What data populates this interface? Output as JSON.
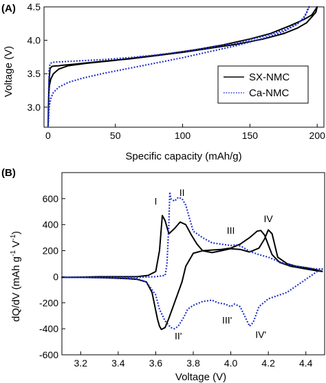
{
  "panels": [
    {
      "panel_label": "(A)",
      "chart_data": {
        "type": "line",
        "xlabel": "Specific capacity (mAh/g)",
        "ylabel": "Voltage (V)",
        "xlim": [
          -3,
          205
        ],
        "ylim": [
          2.7,
          4.5
        ],
        "xticks": [
          0,
          50,
          100,
          150,
          200
        ],
        "yticks": [
          3.0,
          3.5,
          4.0,
          4.5
        ],
        "ytick_labels": [
          "3.0",
          "3.5",
          "4.0",
          "4.5"
        ],
        "grid": false,
        "legend_position": "center-right",
        "series": [
          {
            "name": "SX-NMC",
            "color": "#000000",
            "dash": "solid",
            "x": [
              0,
              0.3,
              0.8,
              1.5,
              3,
              5,
              8,
              12,
              18,
              25,
              40,
              60,
              80,
              100,
              120,
              140,
              160,
              175,
              185,
              192,
              196,
              199,
              200,
              199,
              196,
              190,
              180,
              165,
              150,
              130,
              110,
              90,
              70,
              50,
              30,
              15,
              8,
              4,
              2,
              1,
              0.6,
              0.4,
              0.2,
              0.1,
              0
            ],
            "y": [
              2.71,
              3.0,
              3.4,
              3.58,
              3.61,
              3.615,
              3.62,
              3.63,
              3.64,
              3.655,
              3.685,
              3.72,
              3.77,
              3.82,
              3.88,
              3.94,
              4.02,
              4.1,
              4.18,
              4.26,
              4.35,
              4.42,
              4.5,
              4.47,
              4.38,
              4.31,
              4.22,
              4.1,
              4.02,
              3.93,
              3.86,
              3.8,
              3.75,
              3.7,
              3.66,
              3.62,
              3.57,
              3.5,
              3.42,
              3.32,
              3.2,
              3.05,
              2.9,
              2.8,
              2.71
            ]
          },
          {
            "name": "Ca-NMC",
            "color": "#2233cc",
            "dash": "dotted",
            "x": [
              0,
              0.3,
              0.8,
              1.5,
              3,
              6,
              12,
              20,
              40,
              60,
              80,
              100,
              120,
              140,
              160,
              175,
              185,
              190,
              192,
              193,
              194,
              193,
              190,
              185,
              175,
              160,
              140,
              120,
              100,
              80,
              60,
              40,
              25,
              15,
              8,
              4,
              2,
              1,
              0.6,
              0.4,
              0.2,
              0
            ],
            "y": [
              2.71,
              3.1,
              3.55,
              3.65,
              3.67,
              3.675,
              3.68,
              3.69,
              3.71,
              3.74,
              3.78,
              3.83,
              3.89,
              3.96,
              4.06,
              4.15,
              4.24,
              4.33,
              4.4,
              4.47,
              4.5,
              4.45,
              4.34,
              4.24,
              4.13,
              4.03,
              3.92,
              3.83,
              3.74,
              3.66,
              3.58,
              3.5,
              3.43,
              3.37,
              3.3,
              3.22,
              3.13,
              3.02,
              2.92,
              2.84,
              2.77,
              2.71
            ]
          }
        ]
      }
    },
    {
      "panel_label": "(B)",
      "chart_data": {
        "type": "line",
        "xlabel": "Voltage (V)",
        "ylabel_parts": [
          "dQ/dV  (mAh g",
          "-1",
          " V",
          "-1",
          ")"
        ],
        "xlim": [
          3.1,
          4.5
        ],
        "ylim": [
          -600,
          800
        ],
        "xticks": [
          3.2,
          3.4,
          3.6,
          3.8,
          4.0,
          4.2,
          4.4
        ],
        "xtick_labels": [
          "3.2",
          "3.4",
          "3.6",
          "3.8",
          "4.0",
          "4.2",
          "4.4"
        ],
        "yticks": [
          -600,
          -400,
          -200,
          0,
          200,
          400,
          600
        ],
        "grid": false,
        "annotations": [
          {
            "text": "I",
            "x": 3.6,
            "y": 555
          },
          {
            "text": "II",
            "x": 3.74,
            "y": 620
          },
          {
            "text": "III",
            "x": 4.0,
            "y": 330
          },
          {
            "text": "IV",
            "x": 4.2,
            "y": 420
          },
          {
            "text": "II'",
            "x": 3.72,
            "y": -480
          },
          {
            "text": "III'",
            "x": 3.98,
            "y": -360
          },
          {
            "text": "IV'",
            "x": 4.16,
            "y": -470
          }
        ],
        "series": [
          {
            "name": "SX-NMC",
            "color": "#000000",
            "dash": "solid",
            "x": [
              4.49,
              4.46,
              4.4,
              4.32,
              4.26,
              4.22,
              4.2,
              4.18,
              4.16,
              4.14,
              4.1,
              4.05,
              4.0,
              3.95,
              3.9,
              3.85,
              3.8,
              3.76,
              3.74,
              3.72,
              3.7,
              3.67,
              3.65,
              3.63,
              3.62,
              3.61,
              3.6,
              3.58,
              3.55,
              3.5,
              3.45,
              3.4,
              3.35,
              3.3,
              3.25,
              3.2,
              3.15,
              3.1,
              3.2,
              3.3,
              3.4,
              3.5,
              3.56,
              3.6,
              3.62,
              3.635,
              3.65,
              3.67,
              3.7,
              3.73,
              3.76,
              3.79,
              3.82,
              3.85,
              3.9,
              3.95,
              4.0,
              4.05,
              4.1,
              4.15,
              4.18,
              4.2,
              4.22,
              4.25,
              4.3,
              4.35,
              4.4,
              4.45,
              4.49
            ],
            "y": [
              40,
              45,
              60,
              80,
              110,
              170,
              245,
              320,
              355,
              350,
              300,
              250,
              220,
              210,
              205,
              200,
              180,
              80,
              -40,
              -120,
              -200,
              -320,
              -390,
              -405,
              -380,
              -330,
              -260,
              -120,
              -40,
              -20,
              -15,
              -12,
              -10,
              -8,
              -6,
              -5,
              -5,
              -5,
              -3,
              0,
              0,
              0,
              10,
              40,
              200,
              470,
              430,
              330,
              370,
              420,
              400,
              320,
              250,
              200,
              185,
              200,
              215,
              210,
              190,
              220,
              290,
              360,
              330,
              150,
              100,
              80,
              70,
              55,
              40
            ]
          },
          {
            "name": "Ca-NMC",
            "color": "#2233cc",
            "dash": "dotted",
            "x": [
              4.49,
              4.46,
              4.4,
              4.3,
              4.2,
              4.15,
              4.12,
              4.1,
              4.08,
              4.05,
              4.02,
              4.0,
              3.97,
              3.93,
              3.9,
              3.85,
              3.8,
              3.77,
              3.75,
              3.72,
              3.7,
              3.68,
              3.65,
              3.62,
              3.6,
              3.55,
              3.5,
              3.4,
              3.3,
              3.2,
              3.1,
              3.3,
              3.5,
              3.6,
              3.65,
              3.66,
              3.67,
              3.675,
              3.68,
              3.7,
              3.72,
              3.74,
              3.76,
              3.78,
              3.8,
              3.85,
              3.9,
              3.95,
              4.0,
              4.03,
              4.06,
              4.1,
              4.15,
              4.2,
              4.25,
              4.3,
              4.35,
              4.4,
              4.45,
              4.49
            ],
            "y": [
              60,
              40,
              -20,
              -120,
              -170,
              -230,
              -350,
              -380,
              -320,
              -230,
              -210,
              -230,
              -210,
              -200,
              -180,
              -190,
              -220,
              -250,
              -310,
              -380,
              -400,
              -390,
              -340,
              -250,
              -140,
              -40,
              -15,
              -10,
              -8,
              -5,
              -5,
              -5,
              -5,
              0,
              10,
              100,
              400,
              650,
              600,
              580,
              610,
              600,
              550,
              450,
              350,
              300,
              260,
              250,
              240,
              245,
              230,
              195,
              170,
              150,
              120,
              95,
              80,
              70,
              60,
              60
            ]
          }
        ]
      }
    }
  ]
}
